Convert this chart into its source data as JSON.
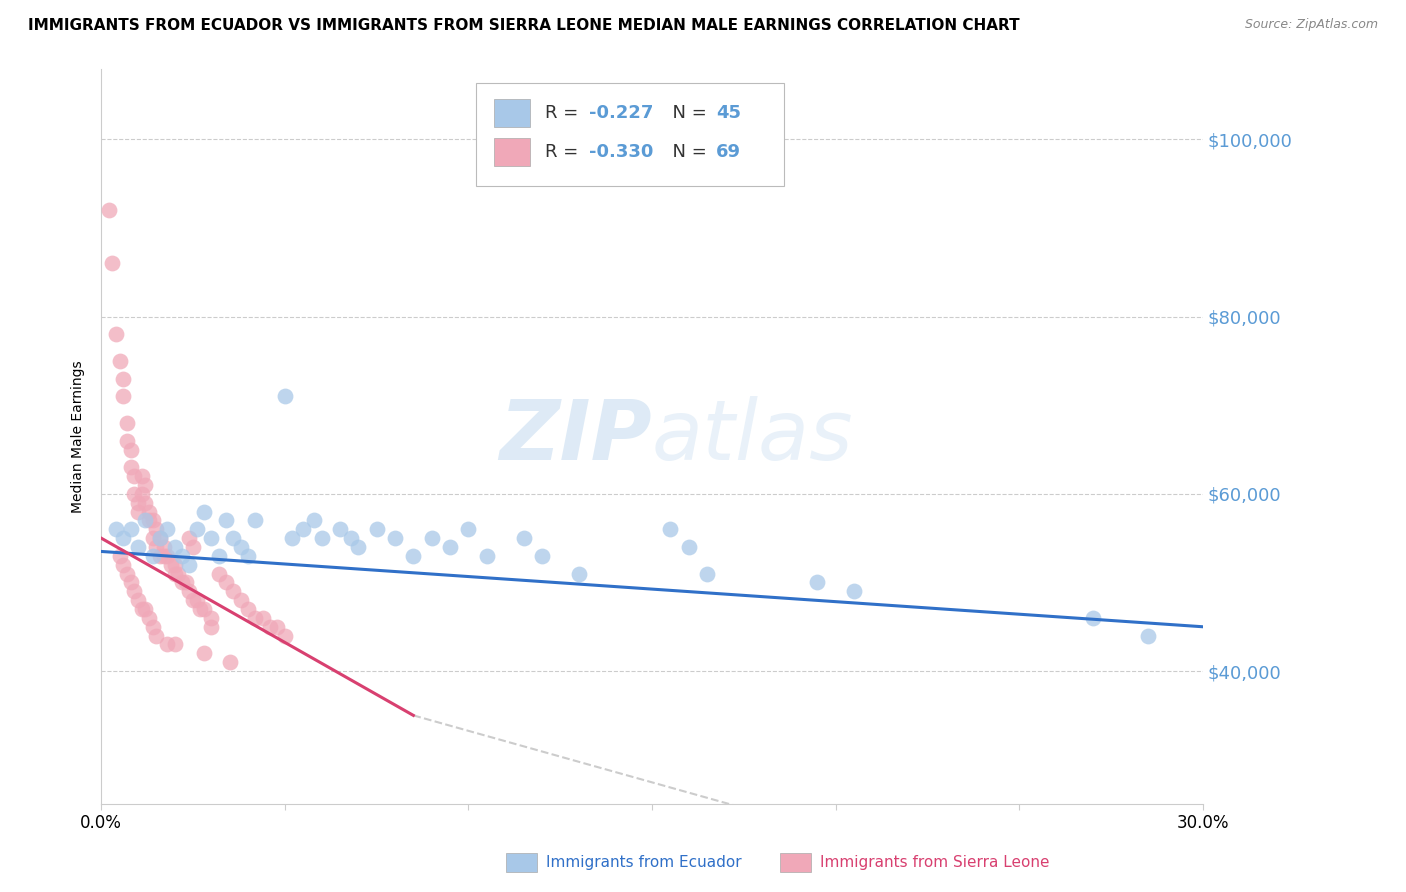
{
  "title": "IMMIGRANTS FROM ECUADOR VS IMMIGRANTS FROM SIERRA LEONE MEDIAN MALE EARNINGS CORRELATION CHART",
  "source": "Source: ZipAtlas.com",
  "ylabel": "Median Male Earnings",
  "ylabel_right_labels": [
    "$100,000",
    "$80,000",
    "$60,000",
    "$40,000"
  ],
  "ylabel_right_values": [
    100000,
    80000,
    60000,
    40000
  ],
  "xmin": 0.0,
  "xmax": 0.3,
  "ymin": 25000,
  "ymax": 108000,
  "watermark": "ZIPatlas",
  "ecuador_color": "#a8c8e8",
  "sierra_leone_color": "#f0a8b8",
  "ecuador_line_color": "#3070c8",
  "sierra_leone_line_color": "#d84070",
  "ecuador_R": -0.227,
  "ecuador_N": 45,
  "sierra_leone_R": -0.33,
  "sierra_leone_N": 69,
  "ecuador_scatter": [
    [
      0.004,
      56000
    ],
    [
      0.006,
      55000
    ],
    [
      0.008,
      56000
    ],
    [
      0.01,
      54000
    ],
    [
      0.012,
      57000
    ],
    [
      0.014,
      53000
    ],
    [
      0.016,
      55000
    ],
    [
      0.018,
      56000
    ],
    [
      0.02,
      54000
    ],
    [
      0.022,
      53000
    ],
    [
      0.024,
      52000
    ],
    [
      0.026,
      56000
    ],
    [
      0.028,
      58000
    ],
    [
      0.03,
      55000
    ],
    [
      0.032,
      53000
    ],
    [
      0.034,
      57000
    ],
    [
      0.036,
      55000
    ],
    [
      0.038,
      54000
    ],
    [
      0.04,
      53000
    ],
    [
      0.042,
      57000
    ],
    [
      0.05,
      71000
    ],
    [
      0.052,
      55000
    ],
    [
      0.055,
      56000
    ],
    [
      0.058,
      57000
    ],
    [
      0.06,
      55000
    ],
    [
      0.065,
      56000
    ],
    [
      0.068,
      55000
    ],
    [
      0.07,
      54000
    ],
    [
      0.075,
      56000
    ],
    [
      0.08,
      55000
    ],
    [
      0.085,
      53000
    ],
    [
      0.09,
      55000
    ],
    [
      0.095,
      54000
    ],
    [
      0.1,
      56000
    ],
    [
      0.105,
      53000
    ],
    [
      0.115,
      55000
    ],
    [
      0.12,
      53000
    ],
    [
      0.13,
      51000
    ],
    [
      0.155,
      56000
    ],
    [
      0.16,
      54000
    ],
    [
      0.165,
      51000
    ],
    [
      0.195,
      50000
    ],
    [
      0.205,
      49000
    ],
    [
      0.27,
      46000
    ],
    [
      0.285,
      44000
    ]
  ],
  "sierra_leone_scatter": [
    [
      0.002,
      92000
    ],
    [
      0.003,
      86000
    ],
    [
      0.004,
      78000
    ],
    [
      0.005,
      75000
    ],
    [
      0.006,
      73000
    ],
    [
      0.006,
      71000
    ],
    [
      0.007,
      68000
    ],
    [
      0.007,
      66000
    ],
    [
      0.008,
      65000
    ],
    [
      0.008,
      63000
    ],
    [
      0.009,
      62000
    ],
    [
      0.009,
      60000
    ],
    [
      0.01,
      59000
    ],
    [
      0.01,
      58000
    ],
    [
      0.011,
      62000
    ],
    [
      0.011,
      60000
    ],
    [
      0.012,
      61000
    ],
    [
      0.012,
      59000
    ],
    [
      0.013,
      58000
    ],
    [
      0.013,
      57000
    ],
    [
      0.014,
      57000
    ],
    [
      0.014,
      55000
    ],
    [
      0.015,
      56000
    ],
    [
      0.015,
      54000
    ],
    [
      0.016,
      55000
    ],
    [
      0.016,
      53000
    ],
    [
      0.017,
      54000
    ],
    [
      0.017,
      53000
    ],
    [
      0.018,
      53000
    ],
    [
      0.019,
      52000
    ],
    [
      0.02,
      52000
    ],
    [
      0.02,
      51000
    ],
    [
      0.021,
      51000
    ],
    [
      0.022,
      50000
    ],
    [
      0.023,
      50000
    ],
    [
      0.024,
      55000
    ],
    [
      0.024,
      49000
    ],
    [
      0.025,
      54000
    ],
    [
      0.025,
      48000
    ],
    [
      0.026,
      48000
    ],
    [
      0.027,
      47000
    ],
    [
      0.028,
      47000
    ],
    [
      0.03,
      46000
    ],
    [
      0.03,
      45000
    ],
    [
      0.032,
      51000
    ],
    [
      0.034,
      50000
    ],
    [
      0.036,
      49000
    ],
    [
      0.038,
      48000
    ],
    [
      0.04,
      47000
    ],
    [
      0.042,
      46000
    ],
    [
      0.044,
      46000
    ],
    [
      0.046,
      45000
    ],
    [
      0.048,
      45000
    ],
    [
      0.05,
      44000
    ],
    [
      0.005,
      53000
    ],
    [
      0.006,
      52000
    ],
    [
      0.007,
      51000
    ],
    [
      0.008,
      50000
    ],
    [
      0.009,
      49000
    ],
    [
      0.01,
      48000
    ],
    [
      0.011,
      47000
    ],
    [
      0.012,
      47000
    ],
    [
      0.013,
      46000
    ],
    [
      0.014,
      45000
    ],
    [
      0.015,
      44000
    ],
    [
      0.018,
      43000
    ],
    [
      0.02,
      43000
    ],
    [
      0.028,
      42000
    ],
    [
      0.035,
      41000
    ]
  ],
  "background_color": "#ffffff",
  "grid_color": "#cccccc",
  "title_fontsize": 11,
  "right_tick_color": "#5b9bd5",
  "ecuador_trendline": [
    0.0,
    53500,
    0.3,
    45000
  ],
  "sl_trendline_solid": [
    0.0,
    55000,
    0.085,
    35000
  ],
  "sl_trendline_dash": [
    0.085,
    35000,
    0.3,
    10000
  ]
}
